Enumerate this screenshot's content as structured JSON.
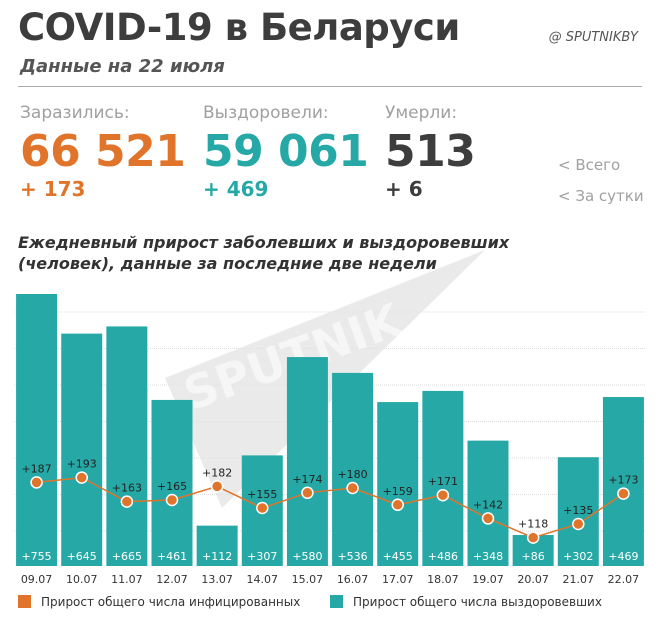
{
  "header": {
    "title": "COVID-19 в Беларуси",
    "subtitle": "Данные на 22 июля",
    "brand": "@ SPUTNIKBY"
  },
  "stats": [
    {
      "label": "Заразились:",
      "total": "66 521",
      "delta": "+ 173",
      "color": "#e0742a"
    },
    {
      "label": "Выздоровели:",
      "total": "59 061",
      "delta": "+ 469",
      "color": "#26a9a6"
    },
    {
      "label": "Умерли:",
      "total": "513",
      "delta": "+ 6",
      "color": "#3d3d3d"
    }
  ],
  "side_legend": {
    "total": "<  Всего",
    "daily": "<  За сутки"
  },
  "watermark": "SPUTNIK",
  "chart_data": {
    "type": "bar",
    "title": "Ежедневный прирост заболевших и выздоровевших (человек), данные за последние две недели",
    "categories": [
      "09.07",
      "10.07",
      "11.07",
      "12.07",
      "13.07",
      "14.07",
      "15.07",
      "16.07",
      "17.07",
      "18.07",
      "19.07",
      "20.07",
      "21.07",
      "22.07"
    ],
    "series": [
      {
        "name": "Прирост общего числа выздоровевших",
        "type": "bar",
        "color": "#26a9a6",
        "values": [
          755,
          645,
          665,
          461,
          112,
          307,
          580,
          536,
          455,
          486,
          348,
          86,
          302,
          469
        ],
        "labels": [
          "+755",
          "+645",
          "+665",
          "+461",
          "+112",
          "+307",
          "+580",
          "+536",
          "+455",
          "+486",
          "+348",
          "+86",
          "+302",
          "+469"
        ]
      },
      {
        "name": "Прирост общего числа инфицированных",
        "type": "line",
        "color": "#e0742a",
        "values": [
          187,
          193,
          163,
          165,
          182,
          155,
          174,
          180,
          159,
          171,
          142,
          118,
          135,
          173
        ],
        "labels": [
          "+187",
          "+193",
          "+163",
          "+165",
          "+182",
          "+155",
          "+174",
          "+180",
          "+159",
          "+171",
          "+142",
          "+118",
          "+135",
          "+173"
        ]
      }
    ],
    "grid": true,
    "legend_position": "bottom"
  }
}
